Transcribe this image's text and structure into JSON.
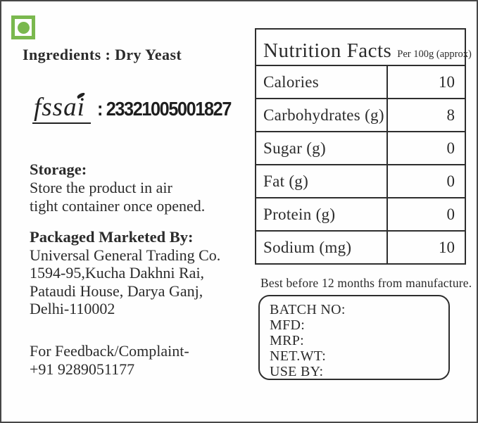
{
  "label": {
    "veg_mark_color": "#7ab84e",
    "ingredients": "Ingredients : Dry Yeast",
    "fssai": {
      "logo_text": "fssai",
      "license_number": ": 23321005001827"
    },
    "storage": {
      "title": "Storage:",
      "lines": [
        "Store the product in air",
        "tight container once opened."
      ]
    },
    "packaged": {
      "title": "Packaged Marketed By:",
      "lines": [
        "Universal General Trading Co.",
        "1594-95,Kucha Dakhni Rai,",
        "Pataudi House, Darya Ganj,",
        "Delhi-110002"
      ]
    },
    "feedback": {
      "lines": [
        "For Feedback/Complaint-",
        "+91 9289051177"
      ]
    },
    "nutrition": {
      "title": "Nutrition Facts",
      "subtitle": "Per 100g (approx)",
      "rows": [
        {
          "label": "Calories",
          "value": "10"
        },
        {
          "label": "Carbohydrates (g)",
          "value": "8"
        },
        {
          "label": "Sugar (g)",
          "value": "0"
        },
        {
          "label": "Fat (g)",
          "value": "0"
        },
        {
          "label": "Protein (g)",
          "value": "0"
        },
        {
          "label": "Sodium (mg)",
          "value": "10"
        }
      ]
    },
    "best_before": "Best before 12 months from manufacture.",
    "batch": {
      "lines": [
        "BATCH NO:",
        "MFD:",
        "MRP:",
        "NET.WT:",
        "USE BY:"
      ]
    }
  }
}
